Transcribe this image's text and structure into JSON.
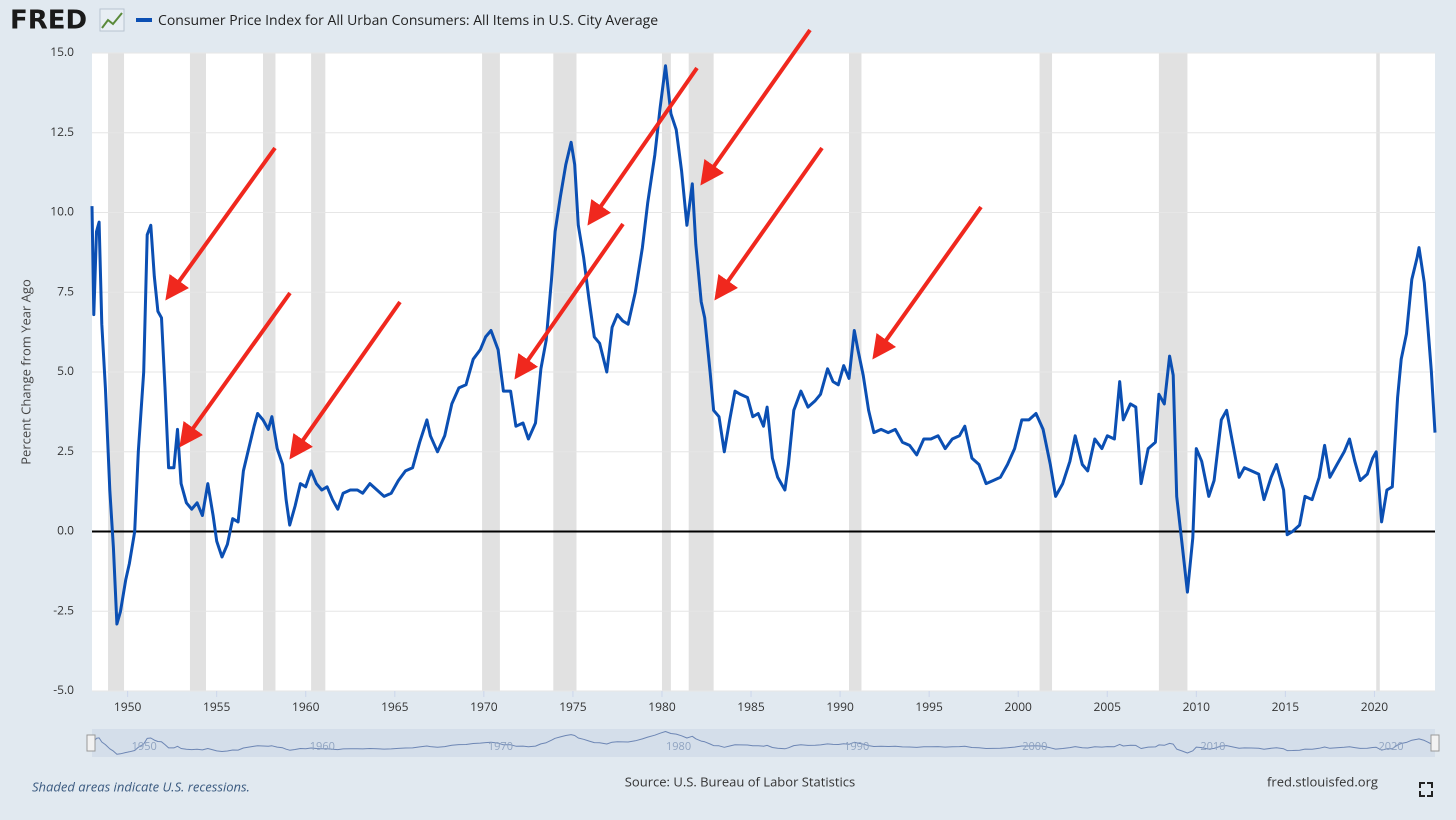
{
  "chart_data": {
    "type": "line",
    "logo": "FRED",
    "ylabel": "Percent Change from Year Ago",
    "note": "Shaded areas indicate U.S. recessions.",
    "source": "Source: U.S. Bureau of Labor Statistics",
    "site": "fred.stlouisfed.org",
    "xlim": [
      1948,
      2023.4
    ],
    "ylim": [
      -5,
      15
    ],
    "xticks": [
      1950,
      1955,
      1960,
      1965,
      1970,
      1975,
      1980,
      1985,
      1990,
      1995,
      2000,
      2005,
      2010,
      2015,
      2020
    ],
    "yticks": [
      {
        "value": -5,
        "label": "-5.0"
      },
      {
        "value": -2.5,
        "label": "-2.5"
      },
      {
        "value": 0,
        "label": "0.0"
      },
      {
        "value": 2.5,
        "label": "2.5"
      },
      {
        "value": 5,
        "label": "5.0"
      },
      {
        "value": 7.5,
        "label": "7.5"
      },
      {
        "value": 10,
        "label": "10.0"
      },
      {
        "value": 12.5,
        "label": "12.5"
      },
      {
        "value": 15,
        "label": "15.0"
      }
    ],
    "navigator_xticks": [
      1950,
      1960,
      1970,
      1980,
      1990,
      2000,
      2010,
      2020
    ],
    "grid": true,
    "recession_color": "#e1e1e1",
    "recessions": [
      [
        1948.9,
        1949.8
      ],
      [
        1953.5,
        1954.4
      ],
      [
        1957.6,
        1958.3
      ],
      [
        1960.3,
        1961.1
      ],
      [
        1969.9,
        1970.9
      ],
      [
        1973.9,
        1975.2
      ],
      [
        1980.0,
        1980.5
      ],
      [
        1981.5,
        1982.9
      ],
      [
        1990.5,
        1991.2
      ],
      [
        2001.2,
        2001.9
      ],
      [
        2007.9,
        2009.5
      ],
      [
        2020.1,
        2020.3
      ]
    ],
    "x": [
      1948.0,
      1948.1,
      1948.25,
      1948.4,
      1948.55,
      1948.75,
      1949.0,
      1949.2,
      1949.4,
      1949.6,
      1949.9,
      1950.1,
      1950.4,
      1950.6,
      1950.9,
      1951.1,
      1951.3,
      1951.5,
      1951.7,
      1951.9,
      1952.1,
      1952.3,
      1952.6,
      1952.8,
      1953.0,
      1953.3,
      1953.6,
      1953.9,
      1954.2,
      1954.5,
      1954.8,
      1955.0,
      1955.3,
      1955.6,
      1955.9,
      1956.2,
      1956.5,
      1956.8,
      1957.1,
      1957.3,
      1957.6,
      1957.9,
      1958.1,
      1958.4,
      1958.7,
      1958.9,
      1959.1,
      1959.4,
      1959.7,
      1960.0,
      1960.3,
      1960.6,
      1960.9,
      1961.2,
      1961.5,
      1961.8,
      1962.1,
      1962.5,
      1962.9,
      1963.2,
      1963.6,
      1964.0,
      1964.4,
      1964.8,
      1965.2,
      1965.6,
      1966.0,
      1966.4,
      1966.8,
      1967.0,
      1967.4,
      1967.8,
      1968.2,
      1968.6,
      1969.0,
      1969.4,
      1969.8,
      1970.1,
      1970.4,
      1970.8,
      1971.1,
      1971.5,
      1971.8,
      1972.2,
      1972.5,
      1972.9,
      1973.2,
      1973.5,
      1973.8,
      1974.0,
      1974.3,
      1974.6,
      1974.9,
      1975.1,
      1975.3,
      1975.6,
      1975.9,
      1976.2,
      1976.5,
      1976.9,
      1977.2,
      1977.5,
      1977.8,
      1978.1,
      1978.5,
      1978.9,
      1979.2,
      1979.6,
      1979.9,
      1980.2,
      1980.5,
      1980.8,
      1981.1,
      1981.4,
      1981.7,
      1981.9,
      1982.2,
      1982.4,
      1982.7,
      1982.9,
      1983.2,
      1983.5,
      1983.8,
      1984.1,
      1984.4,
      1984.8,
      1985.1,
      1985.4,
      1985.7,
      1985.9,
      1986.2,
      1986.5,
      1986.9,
      1987.1,
      1987.4,
      1987.8,
      1988.2,
      1988.6,
      1988.9,
      1989.3,
      1989.6,
      1989.9,
      1990.2,
      1990.5,
      1990.8,
      1991.0,
      1991.3,
      1991.6,
      1991.9,
      1992.3,
      1992.7,
      1993.1,
      1993.5,
      1993.9,
      1994.3,
      1994.7,
      1995.1,
      1995.5,
      1995.9,
      1996.3,
      1996.7,
      1997.0,
      1997.4,
      1997.8,
      1998.2,
      1998.6,
      1999.0,
      1999.4,
      1999.8,
      2000.2,
      2000.6,
      2001.0,
      2001.4,
      2001.8,
      2002.1,
      2002.5,
      2002.9,
      2003.2,
      2003.6,
      2003.9,
      2004.3,
      2004.7,
      2005.0,
      2005.4,
      2005.7,
      2005.9,
      2006.3,
      2006.6,
      2006.9,
      2007.3,
      2007.7,
      2007.9,
      2008.2,
      2008.5,
      2008.7,
      2008.9,
      2009.2,
      2009.5,
      2009.8,
      2010.0,
      2010.3,
      2010.7,
      2011.0,
      2011.4,
      2011.7,
      2012.0,
      2012.4,
      2012.7,
      2013.1,
      2013.5,
      2013.8,
      2014.2,
      2014.5,
      2014.9,
      2015.1,
      2015.4,
      2015.8,
      2016.1,
      2016.5,
      2016.9,
      2017.2,
      2017.5,
      2017.9,
      2018.3,
      2018.6,
      2018.9,
      2019.2,
      2019.6,
      2019.9,
      2020.1,
      2020.4,
      2020.7,
      2021.0,
      2021.3,
      2021.5,
      2021.8,
      2022.1,
      2022.4,
      2022.5,
      2022.8,
      2023.0,
      2023.2,
      2023.4
    ],
    "series": [
      {
        "name": "Consumer Price Index for All Urban Consumers: All Items in U.S. City Average",
        "color": "#0b4fb3",
        "values": [
          10.2,
          6.8,
          9.4,
          9.7,
          6.5,
          4.5,
          1.3,
          -0.5,
          -2.9,
          -2.5,
          -1.5,
          -1.0,
          0.0,
          2.5,
          5.0,
          9.3,
          9.6,
          8.0,
          6.9,
          6.7,
          4.5,
          2.0,
          2.0,
          3.2,
          1.5,
          0.9,
          0.7,
          0.9,
          0.5,
          1.5,
          0.5,
          -0.3,
          -0.8,
          -0.4,
          0.4,
          0.3,
          1.9,
          2.6,
          3.3,
          3.7,
          3.5,
          3.2,
          3.6,
          2.6,
          2.1,
          1.0,
          0.2,
          0.8,
          1.5,
          1.4,
          1.9,
          1.5,
          1.3,
          1.4,
          1.0,
          0.7,
          1.2,
          1.3,
          1.3,
          1.2,
          1.5,
          1.3,
          1.1,
          1.2,
          1.6,
          1.9,
          2.0,
          2.8,
          3.5,
          3.0,
          2.5,
          3.0,
          4.0,
          4.5,
          4.6,
          5.4,
          5.7,
          6.1,
          6.3,
          5.7,
          4.4,
          4.4,
          3.3,
          3.4,
          2.9,
          3.4,
          5.1,
          6.0,
          7.9,
          9.4,
          10.5,
          11.5,
          12.2,
          11.5,
          9.6,
          8.6,
          7.3,
          6.1,
          5.9,
          5.0,
          6.4,
          6.8,
          6.6,
          6.5,
          7.5,
          8.9,
          10.3,
          11.8,
          13.3,
          14.6,
          13.1,
          12.6,
          11.3,
          9.6,
          10.9,
          9.0,
          7.2,
          6.7,
          5.0,
          3.8,
          3.6,
          2.5,
          3.5,
          4.4,
          4.3,
          4.2,
          3.6,
          3.7,
          3.3,
          3.9,
          2.3,
          1.7,
          1.3,
          2.1,
          3.8,
          4.4,
          3.9,
          4.1,
          4.3,
          5.1,
          4.7,
          4.6,
          5.2,
          4.8,
          6.3,
          5.7,
          4.9,
          3.8,
          3.1,
          3.2,
          3.1,
          3.2,
          2.8,
          2.7,
          2.4,
          2.9,
          2.9,
          3.0,
          2.6,
          2.9,
          3.0,
          3.3,
          2.3,
          2.1,
          1.5,
          1.6,
          1.7,
          2.1,
          2.6,
          3.5,
          3.5,
          3.7,
          3.2,
          2.1,
          1.1,
          1.5,
          2.2,
          3.0,
          2.1,
          1.9,
          2.9,
          2.6,
          3.0,
          2.9,
          4.7,
          3.5,
          4.0,
          3.9,
          1.5,
          2.6,
          2.8,
          4.3,
          4.0,
          5.5,
          4.9,
          1.1,
          -0.4,
          -1.9,
          -0.2,
          2.6,
          2.2,
          1.1,
          1.6,
          3.5,
          3.8,
          2.9,
          1.7,
          2.0,
          1.9,
          1.8,
          1.0,
          1.7,
          2.1,
          1.3,
          -0.1,
          0.0,
          0.2,
          1.1,
          1.0,
          1.7,
          2.7,
          1.7,
          2.1,
          2.5,
          2.9,
          2.2,
          1.6,
          1.8,
          2.3,
          2.5,
          0.3,
          1.3,
          1.4,
          4.2,
          5.4,
          6.2,
          7.9,
          8.6,
          8.9,
          7.8,
          6.4,
          5.0,
          3.1
        ]
      }
    ]
  }
}
